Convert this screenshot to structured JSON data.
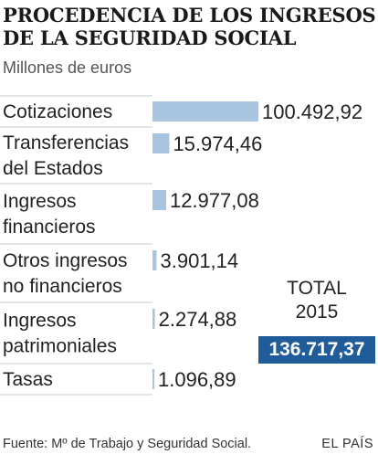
{
  "title_lines": [
    "PROCEDENCIA DE LOS INGRESOS",
    "DE LA SEGURIDAD SOCIAL"
  ],
  "subtitle": "Millones de euros",
  "chart_data": {
    "type": "bar",
    "orientation": "horizontal",
    "title": "PROCEDENCIA DE LOS INGRESOS DE LA SEGURIDAD SOCIAL",
    "unit": "Millones de euros",
    "categories": [
      [
        "Cotizaciones"
      ],
      [
        "Transferencias",
        "del Estados"
      ],
      [
        "Ingresos",
        "financieros"
      ],
      [
        "Otros ingresos",
        "no financieros"
      ],
      [
        "Ingresos",
        "patrimoniales"
      ],
      [
        "Tasas"
      ]
    ],
    "values": [
      100492.92,
      15974.46,
      12977.08,
      3901.14,
      2274.88,
      1096.89
    ],
    "value_labels": [
      "100.492,92",
      "15.974,46",
      "12.977,08",
      "3.901,14",
      "2.274,88",
      "1.096,89"
    ],
    "bar_color": "#a9c4df"
  },
  "total": {
    "label_lines": [
      "TOTAL",
      "2015"
    ],
    "value": "136.717,37",
    "highlight_color": "#1f5c99"
  },
  "source": "Fuente: Mº de Trabajo y Seguridad Social.",
  "credit": "EL PAÍS"
}
